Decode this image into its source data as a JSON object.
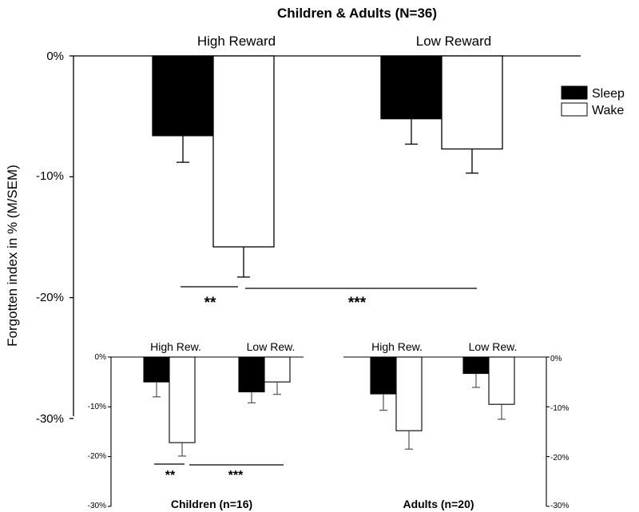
{
  "chart_data": [
    {
      "type": "bar",
      "title": "Children & Adults (N=36)",
      "ylabel": "Forgotten index in % (M/SEM)",
      "ylim": [
        -30,
        0
      ],
      "yticks": [
        "0%",
        "-10%",
        "-20%",
        "-30%"
      ],
      "categories": [
        "High Reward",
        "Low Reward"
      ],
      "series": [
        {
          "name": "Sleep",
          "values": [
            -6.6,
            -5.2
          ],
          "sem": [
            2.2,
            2.1
          ],
          "fill": "#000000"
        },
        {
          "name": "Wake",
          "values": [
            -15.8,
            -7.7
          ],
          "sem": [
            2.5,
            2.0
          ],
          "fill": "#ffffff"
        }
      ],
      "legend": "top-right",
      "significance": [
        "**",
        "***"
      ]
    },
    {
      "type": "bar",
      "title": "Children (n=16)",
      "ylim": [
        -30,
        0
      ],
      "yticks": [
        "0%",
        "-10%",
        "-20%",
        "-30%"
      ],
      "categories": [
        "High Rew.",
        "Low Rew."
      ],
      "series": [
        {
          "name": "Sleep",
          "values": [
            -5.0,
            -7.0
          ],
          "sem": [
            3.0,
            2.2
          ]
        },
        {
          "name": "Wake",
          "values": [
            -17.2,
            -5.0
          ],
          "sem": [
            2.7,
            2.5
          ]
        }
      ],
      "significance": [
        "**",
        "***"
      ]
    },
    {
      "type": "bar",
      "title": "Adults (n=20)",
      "ylim": [
        -30,
        0
      ],
      "yticks": [
        "0%",
        "-10%",
        "-20%",
        "-30%"
      ],
      "categories": [
        "High Rew.",
        "Low Rew."
      ],
      "series": [
        {
          "name": "Sleep",
          "values": [
            -7.4,
            -3.3
          ],
          "sem": [
            3.3,
            2.8
          ]
        },
        {
          "name": "Wake",
          "values": [
            -14.8,
            -9.5
          ],
          "sem": [
            3.7,
            3.0
          ]
        }
      ]
    }
  ]
}
